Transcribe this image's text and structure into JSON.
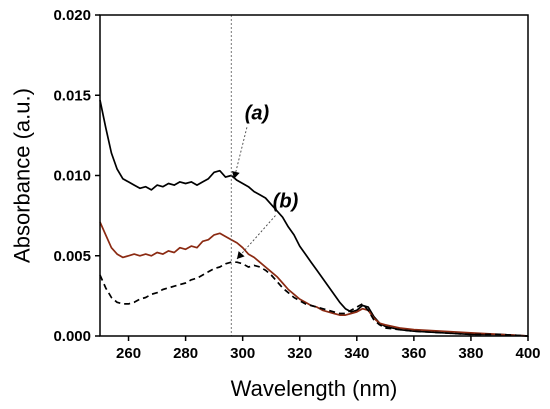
{
  "chart_data": {
    "type": "line",
    "title": "",
    "xlabel": "Wavelength (nm)",
    "ylabel": "Absorbance (a.u.)",
    "xlim": [
      250,
      400
    ],
    "ylim": [
      0,
      0.02
    ],
    "x_ticks": [
      "260",
      "280",
      "300",
      "320",
      "340",
      "360",
      "380",
      "400"
    ],
    "y_ticks": [
      "0.000",
      "0.005",
      "0.010",
      "0.015",
      "0.020"
    ],
    "grid": false,
    "legend": "none",
    "reference_line_x": 296,
    "annotations": [
      {
        "text": "(a)",
        "text_at": [
          305,
          0.0135
        ],
        "arrow_to": [
          297,
          0.0098
        ]
      },
      {
        "text": "(b)",
        "text_at": [
          315,
          0.008
        ],
        "arrow_to": [
          298,
          0.0048
        ]
      }
    ],
    "series": [
      {
        "color": "#000000",
        "style": "solid",
        "points": [
          [
            250,
            0.0147
          ],
          [
            252,
            0.013
          ],
          [
            254,
            0.0114
          ],
          [
            256,
            0.0104
          ],
          [
            258,
            0.0098
          ],
          [
            260,
            0.0096
          ],
          [
            262,
            0.0094
          ],
          [
            264,
            0.0092
          ],
          [
            266,
            0.0093
          ],
          [
            268,
            0.0091
          ],
          [
            270,
            0.0094
          ],
          [
            272,
            0.0093
          ],
          [
            274,
            0.0095
          ],
          [
            276,
            0.0094
          ],
          [
            278,
            0.0096
          ],
          [
            280,
            0.0095
          ],
          [
            282,
            0.0096
          ],
          [
            284,
            0.0094
          ],
          [
            286,
            0.0096
          ],
          [
            288,
            0.0098
          ],
          [
            290,
            0.0102
          ],
          [
            292,
            0.0103
          ],
          [
            294,
            0.0099
          ],
          [
            296,
            0.01
          ],
          [
            298,
            0.0097
          ],
          [
            300,
            0.0095
          ],
          [
            302,
            0.0093
          ],
          [
            304,
            0.009
          ],
          [
            306,
            0.0088
          ],
          [
            308,
            0.0086
          ],
          [
            310,
            0.0082
          ],
          [
            312,
            0.0078
          ],
          [
            314,
            0.0074
          ],
          [
            316,
            0.0068
          ],
          [
            318,
            0.0063
          ],
          [
            320,
            0.0056
          ],
          [
            322,
            0.0051
          ],
          [
            324,
            0.0046
          ],
          [
            326,
            0.0041
          ],
          [
            328,
            0.0036
          ],
          [
            330,
            0.0031
          ],
          [
            332,
            0.0026
          ],
          [
            334,
            0.0021
          ],
          [
            336,
            0.0017
          ],
          [
            338,
            0.0015
          ],
          [
            340,
            0.0016
          ],
          [
            342,
            0.0019
          ],
          [
            344,
            0.0018
          ],
          [
            346,
            0.0012
          ],
          [
            348,
            0.0008
          ],
          [
            350,
            0.0006
          ],
          [
            355,
            0.0004
          ],
          [
            360,
            0.0003
          ],
          [
            370,
            0.0002
          ],
          [
            380,
            0.0001
          ],
          [
            390,
            0.0001
          ],
          [
            400,
            0.0
          ]
        ]
      },
      {
        "color": "#8b2a12",
        "style": "solid",
        "points": [
          [
            250,
            0.0071
          ],
          [
            252,
            0.0063
          ],
          [
            254,
            0.0055
          ],
          [
            256,
            0.0051
          ],
          [
            258,
            0.0049
          ],
          [
            260,
            0.005
          ],
          [
            262,
            0.0051
          ],
          [
            264,
            0.005
          ],
          [
            266,
            0.0051
          ],
          [
            268,
            0.005
          ],
          [
            270,
            0.0052
          ],
          [
            272,
            0.0051
          ],
          [
            274,
            0.0053
          ],
          [
            276,
            0.0052
          ],
          [
            278,
            0.0055
          ],
          [
            280,
            0.0054
          ],
          [
            282,
            0.0056
          ],
          [
            284,
            0.0055
          ],
          [
            286,
            0.0059
          ],
          [
            288,
            0.006
          ],
          [
            290,
            0.0063
          ],
          [
            292,
            0.0064
          ],
          [
            294,
            0.0062
          ],
          [
            296,
            0.006
          ],
          [
            298,
            0.0058
          ],
          [
            300,
            0.0055
          ],
          [
            302,
            0.0051
          ],
          [
            304,
            0.0049
          ],
          [
            306,
            0.0046
          ],
          [
            308,
            0.0043
          ],
          [
            310,
            0.004
          ],
          [
            312,
            0.0037
          ],
          [
            314,
            0.0033
          ],
          [
            316,
            0.0029
          ],
          [
            318,
            0.0026
          ],
          [
            320,
            0.0023
          ],
          [
            322,
            0.0021
          ],
          [
            324,
            0.0019
          ],
          [
            326,
            0.0018
          ],
          [
            328,
            0.0016
          ],
          [
            330,
            0.0015
          ],
          [
            332,
            0.0014
          ],
          [
            334,
            0.0013
          ],
          [
            336,
            0.0013
          ],
          [
            338,
            0.0014
          ],
          [
            340,
            0.0015
          ],
          [
            342,
            0.0017
          ],
          [
            344,
            0.0016
          ],
          [
            346,
            0.0011
          ],
          [
            348,
            0.0008
          ],
          [
            350,
            0.0007
          ],
          [
            355,
            0.0005
          ],
          [
            360,
            0.0004
          ],
          [
            370,
            0.0003
          ],
          [
            380,
            0.0002
          ],
          [
            390,
            0.0001
          ],
          [
            400,
            0.0
          ]
        ]
      },
      {
        "color": "#000000",
        "style": "dashed",
        "points": [
          [
            250,
            0.0038
          ],
          [
            252,
            0.003
          ],
          [
            254,
            0.0024
          ],
          [
            256,
            0.0021
          ],
          [
            258,
            0.002
          ],
          [
            260,
            0.002
          ],
          [
            262,
            0.0021
          ],
          [
            264,
            0.0023
          ],
          [
            266,
            0.0024
          ],
          [
            268,
            0.0026
          ],
          [
            270,
            0.0027
          ],
          [
            272,
            0.0029
          ],
          [
            274,
            0.003
          ],
          [
            276,
            0.0031
          ],
          [
            278,
            0.0032
          ],
          [
            280,
            0.0033
          ],
          [
            282,
            0.0035
          ],
          [
            284,
            0.0036
          ],
          [
            286,
            0.0038
          ],
          [
            288,
            0.004
          ],
          [
            290,
            0.0042
          ],
          [
            292,
            0.0043
          ],
          [
            294,
            0.0045
          ],
          [
            296,
            0.0046
          ],
          [
            298,
            0.0046
          ],
          [
            300,
            0.0045
          ],
          [
            302,
            0.0043
          ],
          [
            304,
            0.0044
          ],
          [
            306,
            0.0043
          ],
          [
            308,
            0.0041
          ],
          [
            310,
            0.0038
          ],
          [
            312,
            0.0034
          ],
          [
            314,
            0.003
          ],
          [
            316,
            0.0027
          ],
          [
            318,
            0.0024
          ],
          [
            320,
            0.0022
          ],
          [
            322,
            0.002
          ],
          [
            324,
            0.0019
          ],
          [
            326,
            0.0018
          ],
          [
            328,
            0.0017
          ],
          [
            330,
            0.0016
          ],
          [
            332,
            0.0015
          ],
          [
            334,
            0.0014
          ],
          [
            336,
            0.0014
          ],
          [
            338,
            0.0016
          ],
          [
            340,
            0.0018
          ],
          [
            342,
            0.002
          ],
          [
            344,
            0.0016
          ],
          [
            346,
            0.001
          ],
          [
            348,
            0.0007
          ],
          [
            350,
            0.0005
          ],
          [
            355,
            0.0004
          ],
          [
            360,
            0.0003
          ],
          [
            370,
            0.0002
          ],
          [
            380,
            0.0001
          ],
          [
            390,
            0.0001
          ],
          [
            400,
            0.0
          ]
        ]
      }
    ]
  }
}
